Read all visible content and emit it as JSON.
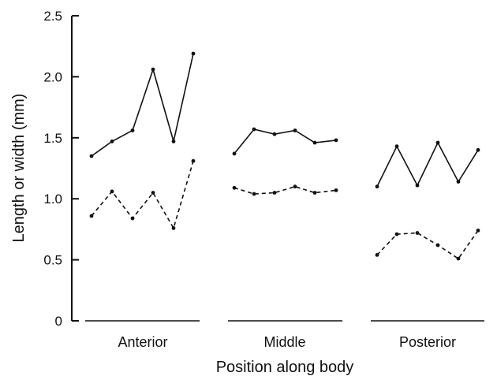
{
  "chart_data": {
    "type": "line",
    "xlabel": "Position along body",
    "ylabel": "Length or width (mm)",
    "ylim": [
      0,
      2.5
    ],
    "yticks": [
      {
        "value": 0,
        "label": "0"
      },
      {
        "value": 0.5,
        "label": "0.5"
      },
      {
        "value": 1.0,
        "label": "1.0"
      },
      {
        "value": 1.5,
        "label": "1.5"
      },
      {
        "value": 2.0,
        "label": "2.0"
      },
      {
        "value": 2.5,
        "label": "2.5"
      }
    ],
    "categories": [
      "Anterior",
      "Middle",
      "Posterior"
    ],
    "grid": false,
    "series": [
      {
        "style": "solid",
        "color": "#111111",
        "groups": [
          [
            1.35,
            1.47,
            1.56,
            2.06,
            1.47,
            2.19
          ],
          [
            1.37,
            1.57,
            1.53,
            1.56,
            1.46,
            1.48
          ],
          [
            1.1,
            1.43,
            1.11,
            1.46,
            1.14,
            1.4
          ]
        ]
      },
      {
        "style": "dashed",
        "color": "#111111",
        "groups": [
          [
            0.86,
            1.06,
            0.84,
            1.05,
            0.76,
            1.31
          ],
          [
            1.09,
            1.04,
            1.05,
            1.1,
            1.05,
            1.07
          ],
          [
            0.54,
            0.71,
            0.72,
            0.62,
            0.51,
            0.74
          ]
        ]
      }
    ]
  }
}
